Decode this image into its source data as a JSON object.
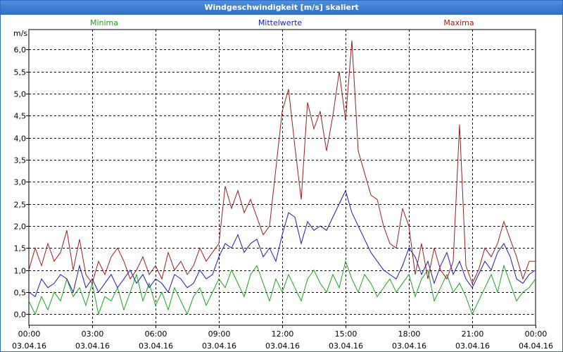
{
  "window": {
    "title": "Windgeschwindigkeit [m/s] skaliert"
  },
  "chart_data": {
    "type": "line",
    "title": "Windgeschwindigkeit [m/s] skaliert",
    "ylabel": "m/s",
    "xlabel": "",
    "ylim": [
      -0.25,
      6.45
    ],
    "xlim": [
      0,
      24
    ],
    "grid": true,
    "legend": "top",
    "yticks": [
      {
        "v": 0.0,
        "label": "0,0"
      },
      {
        "v": 0.5,
        "label": "0,5"
      },
      {
        "v": 1.0,
        "label": "1,0"
      },
      {
        "v": 1.5,
        "label": "1,5"
      },
      {
        "v": 2.0,
        "label": "2,0"
      },
      {
        "v": 2.5,
        "label": "2,5"
      },
      {
        "v": 3.0,
        "label": "3,0"
      },
      {
        "v": 3.5,
        "label": "3,5"
      },
      {
        "v": 4.0,
        "label": "4,0"
      },
      {
        "v": 4.5,
        "label": "4,5"
      },
      {
        "v": 5.0,
        "label": "5,0"
      },
      {
        "v": 5.5,
        "label": "5,5"
      },
      {
        "v": 6.0,
        "label": "6,0"
      }
    ],
    "xticks": [
      {
        "v": 0,
        "time": "00:00",
        "date": "03.04.16"
      },
      {
        "v": 3,
        "time": "03:00",
        "date": "03.04.16"
      },
      {
        "v": 6,
        "time": "06:00",
        "date": "03.04.16"
      },
      {
        "v": 9,
        "time": "09:00",
        "date": "03.04.16"
      },
      {
        "v": 12,
        "time": "12:00",
        "date": "03.04.16"
      },
      {
        "v": 15,
        "time": "15:00",
        "date": "03.04.16"
      },
      {
        "v": 18,
        "time": "18:00",
        "date": "03.04.16"
      },
      {
        "v": 21,
        "time": "21:00",
        "date": "03.04.16"
      },
      {
        "v": 24,
        "time": "00:00",
        "date": "04.04.16"
      }
    ],
    "series": [
      {
        "name": "Minima",
        "color": "#1aa31a",
        "x": [
          0,
          0.3,
          0.6,
          0.9,
          1.2,
          1.5,
          1.8,
          2.1,
          2.4,
          2.7,
          3.0,
          3.3,
          3.6,
          3.9,
          4.2,
          4.5,
          4.8,
          5.1,
          5.4,
          5.7,
          6.0,
          6.3,
          6.6,
          6.9,
          7.2,
          7.5,
          7.8,
          8.1,
          8.4,
          8.7,
          9.0,
          9.3,
          9.6,
          9.9,
          10.2,
          10.5,
          10.8,
          11.1,
          11.4,
          11.7,
          12.0,
          12.3,
          12.6,
          12.9,
          13.2,
          13.5,
          13.8,
          14.1,
          14.4,
          14.7,
          15.0,
          15.3,
          15.6,
          15.9,
          16.2,
          16.5,
          16.8,
          17.1,
          17.4,
          17.7,
          18.0,
          18.3,
          18.6,
          18.9,
          19.2,
          19.5,
          19.8,
          20.1,
          20.4,
          20.7,
          21.0,
          21.3,
          21.6,
          21.9,
          22.2,
          22.5,
          22.8,
          23.1,
          23.4,
          23.7,
          24.0
        ],
        "values": [
          0.3,
          0.0,
          0.4,
          0.1,
          0.5,
          0.3,
          0.8,
          0.4,
          0.6,
          0.2,
          0.7,
          0.0,
          0.4,
          0.3,
          0.6,
          0.1,
          0.5,
          0.9,
          0.3,
          0.7,
          0.2,
          0.5,
          0.1,
          0.6,
          0.3,
          0.0,
          0.4,
          0.6,
          0.2,
          0.5,
          0.8,
          0.6,
          1.0,
          0.7,
          0.4,
          0.9,
          1.1,
          0.7,
          0.3,
          0.8,
          0.5,
          0.9,
          0.6,
          0.3,
          0.8,
          1.0,
          0.7,
          0.5,
          0.9,
          0.6,
          1.2,
          0.8,
          0.5,
          0.9,
          0.7,
          0.4,
          0.6,
          0.8,
          0.5,
          0.7,
          0.9,
          0.4,
          0.8,
          1.0,
          0.3,
          0.6,
          0.9,
          0.5,
          0.7,
          0.4,
          0.0,
          0.3,
          0.6,
          0.9,
          0.5,
          1.1,
          0.7,
          0.3,
          0.5,
          0.6,
          0.8
        ]
      },
      {
        "name": "Mittelwerte",
        "color": "#1a1ab5",
        "x": [
          0,
          0.3,
          0.6,
          0.9,
          1.2,
          1.5,
          1.8,
          2.1,
          2.4,
          2.7,
          3.0,
          3.3,
          3.6,
          3.9,
          4.2,
          4.5,
          4.8,
          5.1,
          5.4,
          5.7,
          6.0,
          6.3,
          6.6,
          6.9,
          7.2,
          7.5,
          7.8,
          8.1,
          8.4,
          8.7,
          9.0,
          9.3,
          9.6,
          9.9,
          10.2,
          10.5,
          10.8,
          11.1,
          11.4,
          11.7,
          12.0,
          12.3,
          12.6,
          12.9,
          13.2,
          13.5,
          13.8,
          14.1,
          14.4,
          14.7,
          15.0,
          15.3,
          15.6,
          15.9,
          16.2,
          16.5,
          16.8,
          17.1,
          17.4,
          17.7,
          18.0,
          18.3,
          18.6,
          18.9,
          19.2,
          19.5,
          19.8,
          20.1,
          20.4,
          20.7,
          21.0,
          21.3,
          21.6,
          21.9,
          22.2,
          22.5,
          22.8,
          23.1,
          23.4,
          23.7,
          24.0
        ],
        "values": [
          0.5,
          0.4,
          0.8,
          0.6,
          0.7,
          0.9,
          0.8,
          0.5,
          1.1,
          0.6,
          0.8,
          0.5,
          0.7,
          0.9,
          0.6,
          0.8,
          1.0,
          0.7,
          0.9,
          0.6,
          0.8,
          0.7,
          0.5,
          0.9,
          0.8,
          0.6,
          0.7,
          1.0,
          0.8,
          0.9,
          1.3,
          1.6,
          1.5,
          1.8,
          1.4,
          1.6,
          1.7,
          1.3,
          1.5,
          1.2,
          1.8,
          2.3,
          2.2,
          1.6,
          2.1,
          1.9,
          2.0,
          1.9,
          2.2,
          2.5,
          2.8,
          2.3,
          2.0,
          1.7,
          1.4,
          1.2,
          1.0,
          0.9,
          0.8,
          1.1,
          1.5,
          1.3,
          0.9,
          1.2,
          0.7,
          1.1,
          1.4,
          0.9,
          1.2,
          0.8,
          0.6,
          0.9,
          1.2,
          1.0,
          1.4,
          1.6,
          1.3,
          0.8,
          0.7,
          0.9,
          1.0
        ]
      },
      {
        "name": "Maxima",
        "color": "#a31a1a",
        "x": [
          0,
          0.3,
          0.6,
          0.9,
          1.2,
          1.5,
          1.8,
          2.1,
          2.4,
          2.7,
          3.0,
          3.3,
          3.6,
          3.9,
          4.2,
          4.5,
          4.8,
          5.1,
          5.4,
          5.7,
          6.0,
          6.3,
          6.6,
          6.9,
          7.2,
          7.5,
          7.8,
          8.1,
          8.4,
          8.7,
          9.0,
          9.3,
          9.6,
          9.9,
          10.2,
          10.5,
          10.8,
          11.1,
          11.4,
          11.7,
          12.0,
          12.3,
          12.6,
          12.9,
          13.2,
          13.5,
          13.8,
          14.1,
          14.4,
          14.7,
          15.0,
          15.3,
          15.6,
          15.9,
          16.2,
          16.5,
          16.8,
          17.1,
          17.4,
          17.7,
          18.0,
          18.3,
          18.6,
          18.9,
          19.2,
          19.5,
          19.8,
          20.1,
          20.4,
          20.7,
          21.0,
          21.3,
          21.6,
          21.9,
          22.2,
          22.5,
          22.8,
          23.1,
          23.4,
          23.7,
          24.0
        ],
        "values": [
          1.0,
          1.5,
          1.1,
          1.6,
          1.2,
          1.4,
          1.9,
          1.0,
          1.7,
          0.9,
          0.7,
          1.2,
          0.9,
          1.3,
          1.5,
          1.2,
          0.8,
          1.0,
          1.3,
          0.9,
          1.1,
          0.8,
          1.4,
          1.0,
          1.2,
          0.9,
          1.1,
          1.5,
          1.2,
          1.4,
          1.6,
          2.9,
          2.4,
          2.8,
          2.3,
          2.6,
          2.2,
          1.8,
          2.0,
          3.3,
          4.6,
          5.1,
          3.8,
          2.6,
          4.8,
          4.2,
          4.6,
          3.7,
          4.5,
          5.5,
          4.4,
          6.2,
          3.7,
          3.2,
          2.7,
          2.6,
          2.0,
          1.6,
          1.5,
          2.4,
          2.0,
          0.9,
          1.6,
          0.8,
          1.5,
          1.0,
          0.8,
          1.2,
          4.3,
          1.1,
          0.7,
          1.0,
          1.5,
          1.3,
          1.6,
          2.1,
          1.7,
          1.3,
          0.8,
          1.2,
          1.2
        ]
      }
    ]
  }
}
